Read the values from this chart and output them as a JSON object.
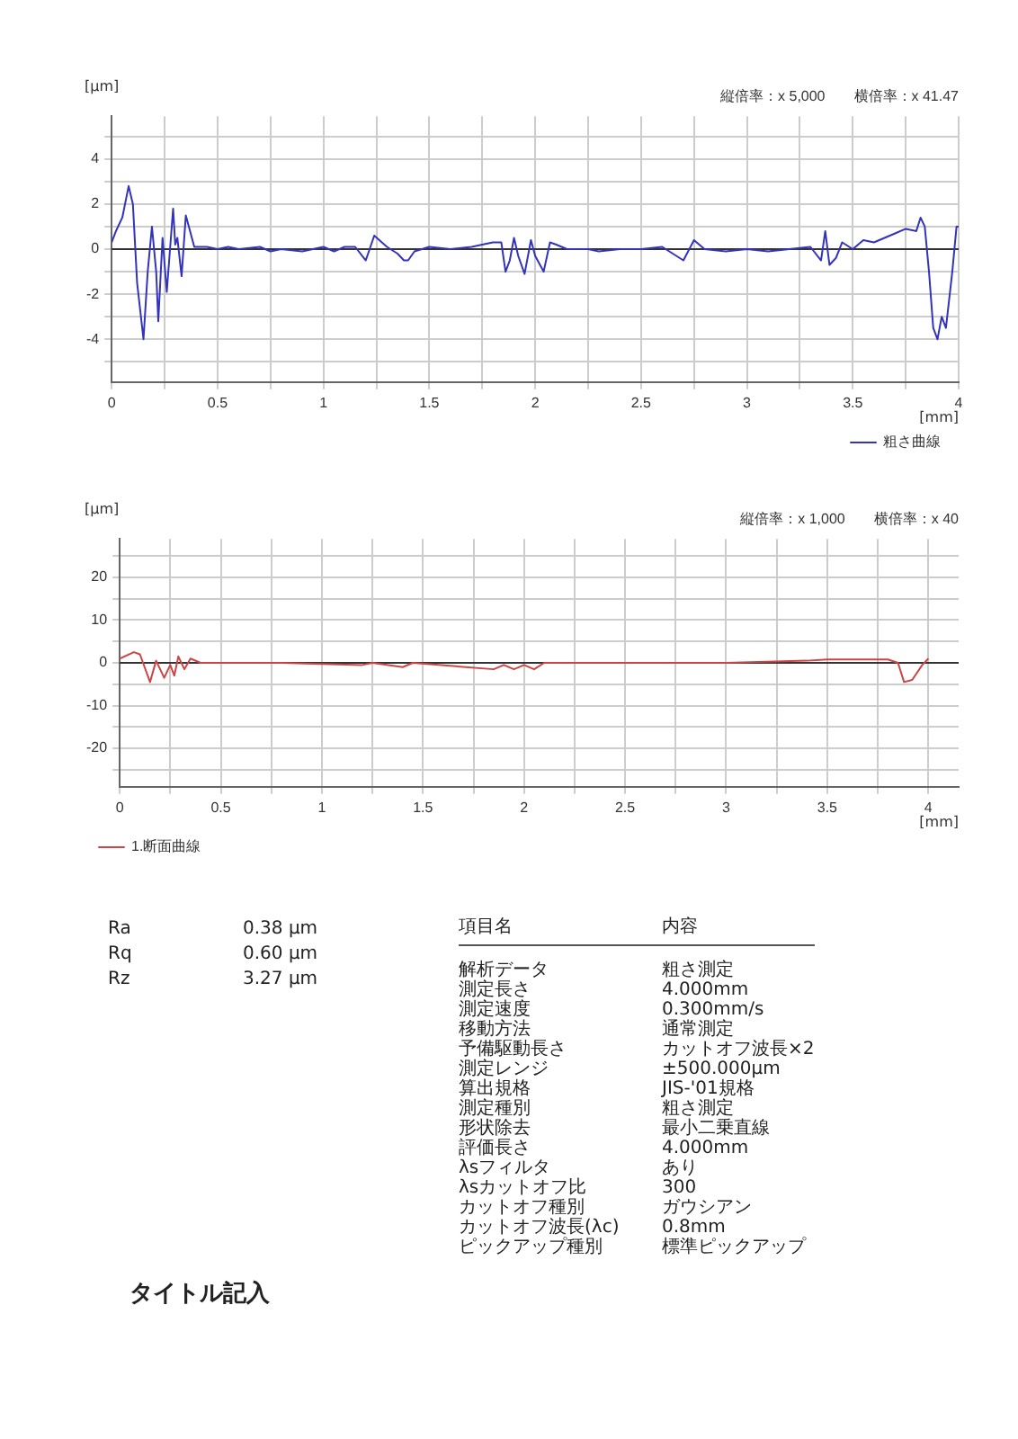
{
  "chart_data": [
    {
      "type": "line",
      "subtitle": "縦倍率：x 5,000　　横倍率：x 41.47",
      "xlabel": "[mm]",
      "ylabel": "[μm]",
      "legend": "bottom right",
      "grid": true,
      "marker": "none",
      "line_style": "solid",
      "xlim": [
        0,
        4
      ],
      "ylim": [
        -5.9,
        5.9
      ],
      "xticks": [
        0,
        {
          "value": 0.25,
          "label": null
        },
        0.5,
        {
          "value": 0.75,
          "label": null
        },
        1,
        {
          "value": 1.25,
          "label": null
        },
        1.5,
        {
          "value": 1.75,
          "label": null
        },
        2,
        {
          "value": 2.25,
          "label": null
        },
        2.5,
        {
          "value": 2.75,
          "label": null
        },
        3,
        {
          "value": 3.25,
          "label": null
        },
        3.5,
        {
          "value": 3.75,
          "label": null
        },
        4
      ],
      "yticks": [
        {
          "value": -5,
          "label": null
        },
        -4,
        {
          "value": -3,
          "label": null
        },
        -2,
        {
          "value": -1,
          "label": null
        },
        0,
        {
          "value": 1,
          "label": null
        },
        2,
        {
          "value": 3,
          "label": null
        },
        4,
        {
          "value": 5,
          "label": null
        }
      ],
      "ref_lines": [
        {
          "axis": "y",
          "value": 0,
          "color": "#333333"
        }
      ],
      "x": [
        0,
        0.02,
        0.05,
        0.08,
        0.1,
        0.12,
        0.15,
        0.17,
        0.19,
        0.21,
        0.22,
        0.24,
        0.26,
        0.29,
        0.3,
        0.31,
        0.33,
        0.35,
        0.39,
        0.45,
        0.5,
        0.55,
        0.6,
        0.7,
        0.75,
        0.8,
        0.9,
        1.0,
        1.05,
        1.1,
        1.15,
        1.2,
        1.24,
        1.3,
        1.35,
        1.38,
        1.4,
        1.43,
        1.5,
        1.6,
        1.7,
        1.75,
        1.8,
        1.84,
        1.86,
        1.88,
        1.9,
        1.92,
        1.95,
        1.98,
        2.0,
        2.04,
        2.07,
        2.1,
        2.15,
        2.25,
        2.3,
        2.4,
        2.5,
        2.6,
        2.7,
        2.75,
        2.8,
        2.9,
        3.0,
        3.1,
        3.2,
        3.3,
        3.35,
        3.37,
        3.39,
        3.42,
        3.45,
        3.5,
        3.55,
        3.6,
        3.65,
        3.7,
        3.75,
        3.8,
        3.82,
        3.84,
        3.86,
        3.88,
        3.9,
        3.92,
        3.94,
        3.97,
        3.99,
        4.0
      ],
      "series": [
        {
          "name": "粗さ曲線",
          "color": "#3333bb",
          "values": [
            0.3,
            0.8,
            1.4,
            2.8,
            2.0,
            -1.5,
            -4.0,
            -1.0,
            1.0,
            -1.0,
            -3.2,
            0.5,
            -1.9,
            1.8,
            0.2,
            0.5,
            -1.2,
            1.5,
            0.1,
            0.1,
            0.0,
            0.1,
            0.0,
            0.1,
            -0.1,
            0.0,
            -0.1,
            0.1,
            -0.1,
            0.1,
            0.1,
            -0.5,
            0.6,
            0.1,
            -0.2,
            -0.5,
            -0.5,
            -0.1,
            0.1,
            0.0,
            0.1,
            0.2,
            0.3,
            0.3,
            -1.0,
            -0.5,
            0.5,
            -0.3,
            -1.1,
            0.4,
            -0.3,
            -1.0,
            0.3,
            0.2,
            0.0,
            0.0,
            -0.1,
            0.0,
            0.0,
            0.1,
            -0.5,
            0.4,
            0.0,
            -0.1,
            0.0,
            -0.1,
            0.0,
            0.1,
            -0.5,
            0.8,
            -0.7,
            -0.4,
            0.3,
            0.0,
            0.4,
            0.3,
            0.5,
            0.7,
            0.9,
            0.8,
            1.4,
            1.0,
            -1.0,
            -3.5,
            -4.0,
            -3.0,
            -3.5,
            -1.0,
            1.0,
            1.0
          ]
        }
      ]
    },
    {
      "type": "line",
      "subtitle": "縦倍率：x 1,000　　横倍率：x 40",
      "xlabel": "[mm]",
      "ylabel": "[μm]",
      "legend": "bottom left",
      "grid": true,
      "marker": "none",
      "line_style": "solid",
      "xlim": [
        0,
        4.15
      ],
      "ylim": [
        -29,
        29
      ],
      "xticks": [
        0,
        {
          "value": 0.25,
          "label": null
        },
        0.5,
        {
          "value": 0.75,
          "label": null
        },
        1,
        {
          "value": 1.25,
          "label": null
        },
        1.5,
        {
          "value": 1.75,
          "label": null
        },
        2,
        {
          "value": 2.25,
          "label": null
        },
        2.5,
        {
          "value": 2.75,
          "label": null
        },
        3,
        {
          "value": 3.25,
          "label": null
        },
        3.5,
        {
          "value": 3.75,
          "label": null
        },
        4
      ],
      "yticks": [
        {
          "value": -25,
          "label": null
        },
        -20,
        {
          "value": -15,
          "label": null
        },
        -10,
        {
          "value": -5,
          "label": null
        },
        0,
        {
          "value": 5,
          "label": null
        },
        10,
        {
          "value": 15,
          "label": null
        },
        20,
        {
          "value": 25,
          "label": null
        }
      ],
      "ref_lines": [
        {
          "axis": "y",
          "value": 0,
          "color": "#333333"
        }
      ],
      "x": [
        0,
        0.07,
        0.1,
        0.15,
        0.18,
        0.22,
        0.25,
        0.27,
        0.29,
        0.32,
        0.35,
        0.4,
        0.8,
        1.2,
        1.25,
        1.4,
        1.45,
        1.85,
        1.9,
        1.95,
        2.0,
        2.05,
        2.1,
        2.5,
        3.0,
        3.4,
        3.5,
        3.8,
        3.85,
        3.88,
        3.92,
        3.97,
        4.0
      ],
      "series": [
        {
          "name": "1.断面曲線",
          "color": "#cc4444",
          "values": [
            1,
            2.5,
            2,
            -4.5,
            0.5,
            -3.5,
            -0.5,
            -3,
            1.5,
            -1.5,
            1,
            0,
            0,
            -0.5,
            0,
            -1,
            0,
            -1.5,
            -0.5,
            -1.5,
            -0.5,
            -1.5,
            0,
            0,
            0,
            0.5,
            0.8,
            0.8,
            0,
            -4.5,
            -4,
            -0.5,
            1
          ]
        }
      ]
    },
    {
      "type": "other",
      "annotations": [
        "Ra",
        "0.38 μm",
        "Rq",
        "0.60 μm",
        "Rz",
        "3.27 μm",
        "項目名",
        "内容",
        "解析データ",
        "粗さ測定",
        "測定長さ",
        "4.000mm",
        "測定速度",
        "0.300mm/s",
        "移動方法",
        "通常測定",
        "予備駆動長さ",
        "カットオフ波長×2",
        "測定レンジ",
        "±500.000μm",
        "算出規格",
        "JIS-'01規格",
        "測定種別",
        "粗さ測定",
        "形状除去",
        "最小二乗直線",
        "評価長さ",
        "4.000mm",
        "λsフィルタ",
        "あり",
        "λsカットオフ比",
        "300",
        "カットオフ種別",
        "ガウシアン",
        "カットオフ波長(λc)",
        "0.8mm",
        "ピックアップ種別",
        "標準ピックアップ",
        "タイトル記入"
      ]
    }
  ]
}
